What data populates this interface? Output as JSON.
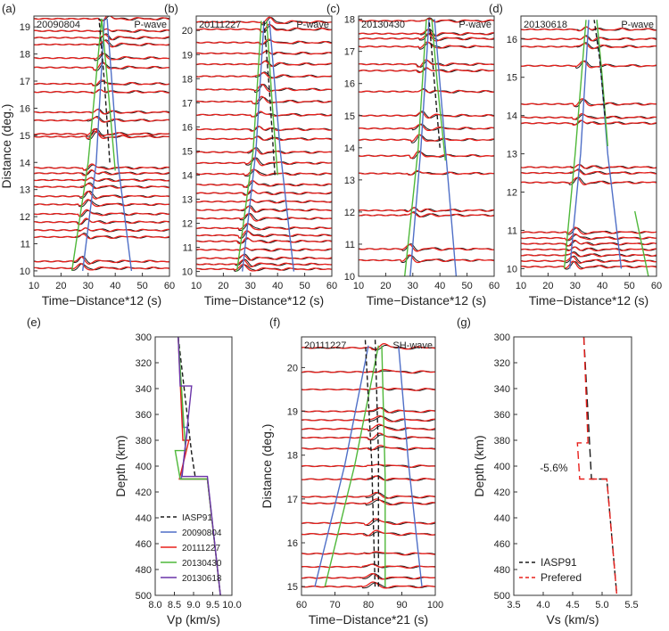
{
  "figure": {
    "colors": {
      "black": "#1a1a1a",
      "red": "#e8201c",
      "blue": "#4f6fc7",
      "green": "#4fb83a",
      "purple": "#6a34a8",
      "axis": "#333333"
    }
  },
  "chart_data": [
    {
      "type": "line",
      "panel_label": "(a)",
      "event": "20090804",
      "wave": "P-wave",
      "xlabel": "Time−Distance*12 (s)",
      "ylabel": "Distance (deg.)",
      "xlim": [
        10,
        60
      ],
      "ylim": [
        9.8,
        19.4
      ],
      "xticks": [
        10,
        20,
        30,
        40,
        50,
        60
      ],
      "yticks": [
        10,
        11,
        12,
        13,
        14,
        15,
        16,
        17,
        18,
        19
      ],
      "traces": [
        10.1,
        10.35,
        11.25,
        11.5,
        11.8,
        12.1,
        12.45,
        12.75,
        13.1,
        13.35,
        13.6,
        13.8,
        14.95,
        15.05,
        15.55,
        15.85,
        16.6,
        16.9,
        17.5,
        17.85,
        18.35,
        18.6,
        18.85,
        19.3
      ],
      "onset": {
        "d0": 10,
        "t0": 26,
        "d1": 19.3,
        "t1": 36
      },
      "moveout": [
        {
          "color": "blue",
          "points": [
            [
              28,
              10
            ],
            [
              33,
              14
            ],
            [
              36,
              19.3
            ]
          ]
        },
        {
          "color": "blue",
          "points": [
            [
              46,
              10
            ],
            [
              41,
              14
            ],
            [
              37,
              19.3
            ]
          ]
        },
        {
          "color": "green",
          "points": [
            [
              24,
              10
            ],
            [
              30,
              14
            ],
            [
              35,
              19.3
            ]
          ]
        },
        {
          "color": "green",
          "points": [
            [
              40,
              13.7
            ],
            [
              38,
              16
            ],
            [
              35,
              19.3
            ]
          ]
        },
        {
          "color": "black",
          "dash": true,
          "points": [
            [
              38,
              14
            ],
            [
              36,
              17
            ],
            [
              34,
              19.3
            ]
          ]
        }
      ]
    },
    {
      "type": "line",
      "panel_label": "(b)",
      "event": "20111227",
      "wave": "P-wave",
      "xlabel": "Time−Distance*12 (s)",
      "ylabel": "",
      "xlim": [
        10,
        60
      ],
      "ylim": [
        9.8,
        20.6
      ],
      "xticks": [
        10,
        20,
        30,
        40,
        50,
        60
      ],
      "yticks": [
        10,
        11,
        12,
        13,
        14,
        15,
        16,
        17,
        18,
        19,
        20
      ],
      "traces": [
        10.1,
        10.3,
        10.55,
        10.9,
        11.25,
        11.5,
        11.8,
        12.2,
        12.55,
        12.9,
        13.25,
        13.6,
        14.05,
        14.5,
        14.95,
        15.5,
        15.9,
        16.5,
        17.05,
        17.55,
        18.1,
        18.6,
        19.05,
        19.5,
        20.05,
        20.35
      ],
      "onset": {
        "d0": 10,
        "t0": 26,
        "d1": 20.4,
        "t1": 36
      },
      "moveout": [
        {
          "color": "blue",
          "points": [
            [
              27,
              10
            ],
            [
              32,
              15
            ],
            [
              35,
              20.4
            ]
          ]
        },
        {
          "color": "blue",
          "points": [
            [
              46,
              10
            ],
            [
              41,
              15
            ],
            [
              37,
              20.4
            ]
          ]
        },
        {
          "color": "green",
          "points": [
            [
              25,
              10
            ],
            [
              31,
              15
            ],
            [
              34,
              20.4
            ]
          ]
        },
        {
          "color": "green",
          "points": [
            [
              40,
              14
            ],
            [
              38,
              17
            ],
            [
              36,
              20.4
            ]
          ]
        },
        {
          "color": "black",
          "dash": true,
          "points": [
            [
              39,
              14
            ],
            [
              37,
              17.5
            ],
            [
              35,
              20.4
            ]
          ]
        }
      ]
    },
    {
      "type": "line",
      "panel_label": "(c)",
      "event": "20130430",
      "wave": "P-wave",
      "xlabel": "Time−Distance*12 (s)",
      "ylabel": "",
      "xlim": [
        10,
        60
      ],
      "ylim": [
        10,
        18.1
      ],
      "xticks": [
        10,
        20,
        30,
        40,
        50,
        60
      ],
      "yticks": [
        10,
        11,
        12,
        13,
        14,
        15,
        16,
        17,
        18
      ],
      "traces": [
        10.5,
        10.85,
        11.9,
        12.05,
        13.2,
        13.75,
        14.25,
        14.6,
        15.0,
        15.75,
        16.4,
        16.6,
        17.15,
        17.4,
        17.55,
        17.95
      ],
      "onset": {
        "d0": 10,
        "t0": 27,
        "d1": 18,
        "t1": 35
      },
      "moveout": [
        {
          "color": "blue",
          "points": [
            [
              29,
              10
            ],
            [
              33,
              14
            ],
            [
              36,
              18
            ]
          ]
        },
        {
          "color": "blue",
          "points": [
            [
              46,
              10
            ],
            [
              42,
              14
            ],
            [
              38,
              18
            ]
          ]
        },
        {
          "color": "green",
          "points": [
            [
              27,
              10
            ],
            [
              32,
              14
            ],
            [
              35,
              18
            ]
          ]
        },
        {
          "color": "green",
          "points": [
            [
              42,
              13.6
            ],
            [
              39,
              16
            ],
            [
              37,
              18
            ]
          ]
        },
        {
          "color": "black",
          "dash": true,
          "points": [
            [
              40,
              14
            ],
            [
              38,
              16
            ],
            [
              36,
              18
            ]
          ]
        }
      ]
    },
    {
      "type": "line",
      "panel_label": "(d)",
      "event": "20130618",
      "wave": "P-wave",
      "xlabel": "Time−Distance*12 (s)",
      "ylabel": "",
      "xlim": [
        10,
        60
      ],
      "ylim": [
        9.8,
        16.6
      ],
      "xticks": [
        10,
        20,
        30,
        40,
        50,
        60
      ],
      "yticks": [
        10,
        11,
        12,
        13,
        14,
        15,
        16
      ],
      "traces": [
        10.05,
        10.2,
        10.35,
        10.5,
        10.65,
        10.8,
        10.95,
        12.25,
        12.5,
        12.65,
        13.8,
        13.95,
        14.3,
        15.3,
        15.8,
        16.0,
        16.25
      ],
      "onset": {
        "d0": 10,
        "t0": 28,
        "d1": 16.5,
        "t1": 33
      },
      "moveout": [
        {
          "color": "blue",
          "points": [
            [
              28,
              10
            ],
            [
              32,
              13
            ],
            [
              35,
              16.5
            ]
          ]
        },
        {
          "color": "blue",
          "points": [
            [
              47,
              10
            ],
            [
              42,
              13
            ],
            [
              38,
              16.5
            ]
          ]
        },
        {
          "color": "green",
          "points": [
            [
              26,
              10
            ],
            [
              30,
              13
            ],
            [
              34,
              16.5
            ]
          ]
        },
        {
          "color": "green",
          "points": [
            [
              42,
              13.2
            ],
            [
              40,
              15
            ],
            [
              38,
              16.5
            ]
          ]
        },
        {
          "color": "green",
          "points": [
            [
              57,
              9.8
            ],
            [
              52,
              11.5
            ]
          ]
        },
        {
          "color": "black",
          "dash": true,
          "points": [
            [
              41,
              14
            ],
            [
              39,
              15.5
            ],
            [
              37,
              16.5
            ]
          ]
        }
      ]
    },
    {
      "type": "line",
      "panel_label": "(e)",
      "xlabel": "Vp (km/s)",
      "ylabel": "Depth (km)",
      "xlim": [
        8.0,
        10.0
      ],
      "ylim": [
        300,
        500
      ],
      "xticks": [
        8.0,
        8.5,
        9.0,
        9.5,
        10.0
      ],
      "yticks": [
        300,
        320,
        340,
        360,
        380,
        400,
        420,
        440,
        460,
        480,
        500
      ],
      "legend": {
        "position": "bottom-left",
        "entries": [
          "IASP91",
          "20090804",
          "20111227",
          "20130430",
          "20130618"
        ]
      },
      "series": [
        {
          "name": "IASP91",
          "color": "black",
          "dash": true,
          "points": [
            [
              8.6,
              300
            ],
            [
              8.95,
              390
            ],
            [
              9.05,
              410
            ]
          ]
        },
        {
          "name": "20090804",
          "color": "blue",
          "points": [
            [
              8.6,
              300
            ],
            [
              8.72,
              370
            ],
            [
              8.85,
              370
            ],
            [
              8.68,
              410
            ],
            [
              9.36,
              410
            ],
            [
              9.7,
              500
            ]
          ]
        },
        {
          "name": "20111227",
          "color": "red",
          "points": [
            [
              8.6,
              300
            ],
            [
              8.72,
              380
            ],
            [
              8.88,
              380
            ],
            [
              8.63,
              410
            ],
            [
              9.36,
              410
            ],
            [
              9.7,
              500
            ]
          ]
        },
        {
          "name": "20130430",
          "color": "green",
          "points": [
            [
              8.6,
              300
            ],
            [
              8.79,
              388
            ],
            [
              8.52,
              388
            ],
            [
              8.65,
              410
            ],
            [
              9.36,
              410
            ],
            [
              9.7,
              500
            ]
          ]
        },
        {
          "name": "20130618",
          "color": "purple",
          "points": [
            [
              8.6,
              300
            ],
            [
              8.65,
              338
            ],
            [
              8.95,
              338
            ],
            [
              8.7,
              408
            ],
            [
              9.36,
              408
            ],
            [
              9.7,
              500
            ]
          ]
        }
      ]
    },
    {
      "type": "line",
      "panel_label": "(f)",
      "event": "20111227",
      "wave": "SH-wave",
      "xlabel": "Time−Distance*21 (s)",
      "ylabel": "Distance (deg.)",
      "xlim": [
        60,
        100
      ],
      "ylim": [
        14.8,
        20.7
      ],
      "xticks": [
        60,
        70,
        80,
        90,
        100
      ],
      "yticks": [
        15,
        16,
        17,
        18,
        19,
        20
      ],
      "traces": [
        15.0,
        15.2,
        15.45,
        15.75,
        16.2,
        16.45,
        16.9,
        17.05,
        17.45,
        17.75,
        18.15,
        18.4,
        18.6,
        18.8,
        19.0,
        19.5,
        19.9,
        20.45
      ],
      "onset": {
        "d0": 15,
        "t0": 80,
        "d1": 20.5,
        "t1": 83
      },
      "moveout": [
        {
          "color": "blue",
          "points": [
            [
              64,
              15
            ],
            [
              73,
              17.8
            ],
            [
              80,
              20.5
            ]
          ]
        },
        {
          "color": "blue",
          "points": [
            [
              96,
              15
            ],
            [
              92,
              17.8
            ],
            [
              89,
              20.5
            ]
          ]
        },
        {
          "color": "green",
          "points": [
            [
              67,
              15
            ],
            [
              76,
              17.8
            ],
            [
              83,
              20.5
            ]
          ]
        },
        {
          "color": "green",
          "points": [
            [
              85,
              15
            ],
            [
              85,
              17.5
            ],
            [
              84,
              20.5
            ]
          ]
        },
        {
          "color": "black",
          "dash": true,
          "points": [
            [
              82,
              15
            ],
            [
              81,
              17.8
            ],
            [
              79,
              20.7
            ]
          ]
        },
        {
          "color": "black",
          "dash": true,
          "points": [
            [
              83,
              15
            ],
            [
              83,
              18
            ],
            [
              82,
              20.7
            ]
          ]
        }
      ]
    },
    {
      "type": "line",
      "panel_label": "(g)",
      "xlabel": "Vs (km/s)",
      "ylabel": "Depth (km)",
      "xlim": [
        3.5,
        5.5
      ],
      "ylim": [
        300,
        500
      ],
      "xticks": [
        3.5,
        4.0,
        4.5,
        5.0,
        5.5
      ],
      "yticks": [
        300,
        320,
        340,
        360,
        380,
        400,
        420,
        440,
        460,
        480,
        500
      ],
      "annotation": "-5.6%",
      "legend": {
        "position": "bottom-left",
        "entries": [
          "IASP91",
          "Prefered"
        ]
      },
      "series": [
        {
          "name": "IASP91",
          "color": "black",
          "dash": true,
          "points": [
            [
              4.69,
              300
            ],
            [
              4.82,
              410
            ],
            [
              5.08,
              410
            ],
            [
              5.25,
              500
            ]
          ]
        },
        {
          "name": "Prefered",
          "color": "red",
          "dash": true,
          "points": [
            [
              4.69,
              300
            ],
            [
              4.76,
              382
            ],
            [
              4.58,
              382
            ],
            [
              4.62,
              410
            ],
            [
              5.08,
              410
            ],
            [
              5.25,
              500
            ]
          ]
        }
      ]
    }
  ]
}
